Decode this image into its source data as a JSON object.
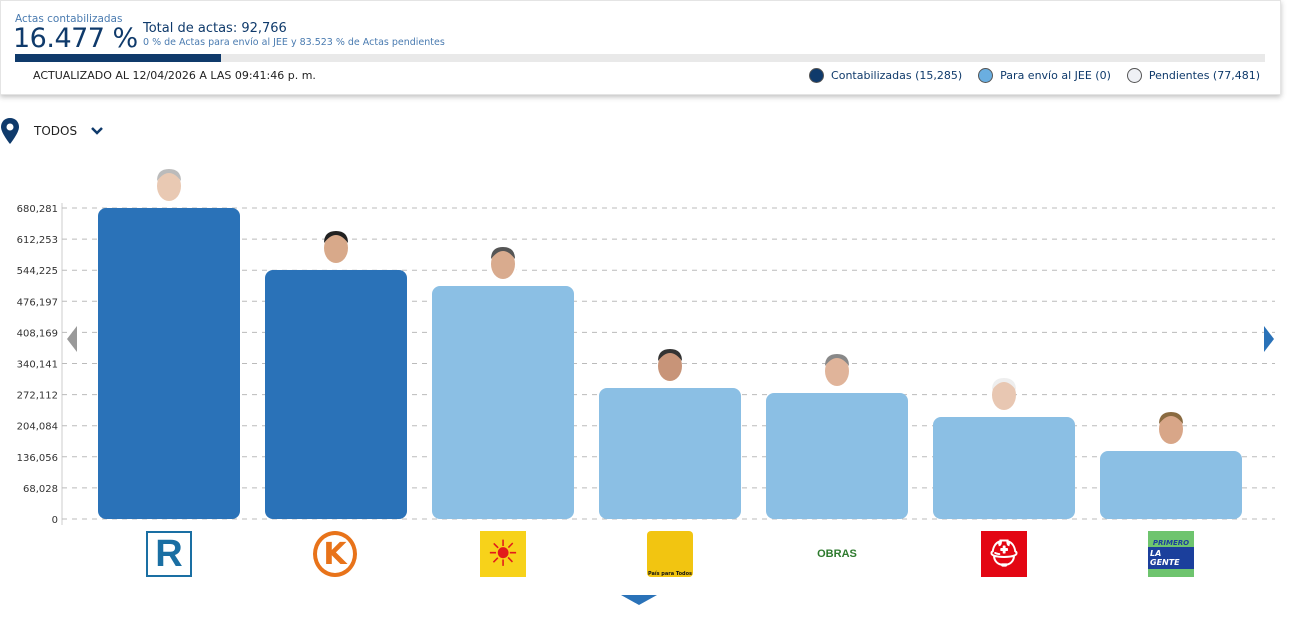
{
  "header": {
    "counted_label": "Actas contabilizadas",
    "counted_percent": "16.477 %",
    "counted_fraction": 0.16477,
    "total": "Total de actas: 92,766",
    "subtitle": "0 % de Actas para envío al JEE y 83.523 % de Actas pendientes",
    "updated": "ACTUALIZADO AL 12/04/2026 A LAS 09:41:46 p. m.",
    "legend": [
      {
        "label": "Contabilizadas (15,285)",
        "color": "#0f3a6b"
      },
      {
        "label": "Para envío al JEE (0)",
        "color": "#6aaee0"
      },
      {
        "label": "Pendientes (77,481)",
        "color": "#eef0f5"
      }
    ]
  },
  "filter": {
    "label": "TODOS",
    "icon": "location-pin-icon"
  },
  "colors": {
    "dark": "#2a72b8",
    "light": "#8bbfe4"
  },
  "chart_data": {
    "type": "bar",
    "yticks": [
      0,
      68028,
      136056,
      204084,
      272112,
      340141,
      408169,
      476197,
      544225,
      612253,
      680281
    ],
    "ytick_labels": [
      "0",
      "68,028",
      "136,056",
      "204,084",
      "272,112",
      "340,141",
      "408,169",
      "476,197",
      "544,225",
      "612,253",
      "680,281"
    ],
    "ylim": [
      0,
      680281
    ],
    "grid": true,
    "categories": [
      "R",
      "K",
      "Sol",
      "País para Todos",
      "OBRAS",
      "Casco",
      "PRIMERO LA GENTE"
    ],
    "values": [
      680281,
      544700,
      509600,
      286500,
      275600,
      223100,
      148700
    ],
    "highlight": [
      true,
      true,
      false,
      false,
      false,
      false,
      false
    ]
  },
  "logos": [
    {
      "text": "R"
    },
    {
      "text": "K"
    },
    {
      "text": "☀"
    },
    {
      "text": "País para Todos"
    },
    {
      "text": "OBRAS"
    },
    {
      "text": "⛑"
    },
    {
      "text": "PRIMERO",
      "text2": "LA GENTE"
    }
  ]
}
